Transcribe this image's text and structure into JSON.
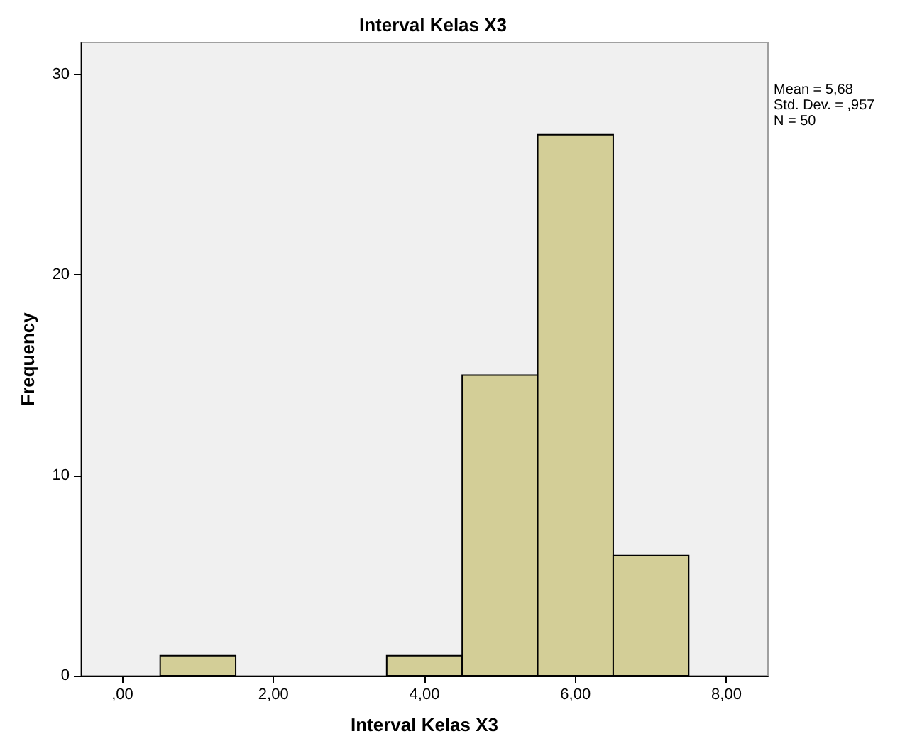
{
  "chart_data": {
    "type": "histogram",
    "title": "Interval Kelas X3",
    "xlabel": "Interval Kelas X3",
    "ylabel": "Frequency",
    "annotations": [
      "Mean = 5,68",
      "Std. Dev. = ,957",
      "N = 50"
    ],
    "bins": [
      0.5,
      1.5,
      2.5,
      3.5,
      4.5,
      5.5,
      6.5,
      7.5
    ],
    "values": [
      1,
      0,
      0,
      1,
      15,
      27,
      6
    ],
    "color": "#d3ce97",
    "xlim": [
      -0.55,
      8.55
    ],
    "xticks": [
      {
        "value": 0,
        "label": ",00"
      },
      {
        "value": 2,
        "label": "2,00"
      },
      {
        "value": 4,
        "label": "4,00"
      },
      {
        "value": 6,
        "label": "6,00"
      },
      {
        "value": 8,
        "label": "8,00"
      }
    ],
    "ylim": [
      0,
      31.6
    ],
    "yticks": [
      0,
      10,
      20,
      30
    ]
  }
}
